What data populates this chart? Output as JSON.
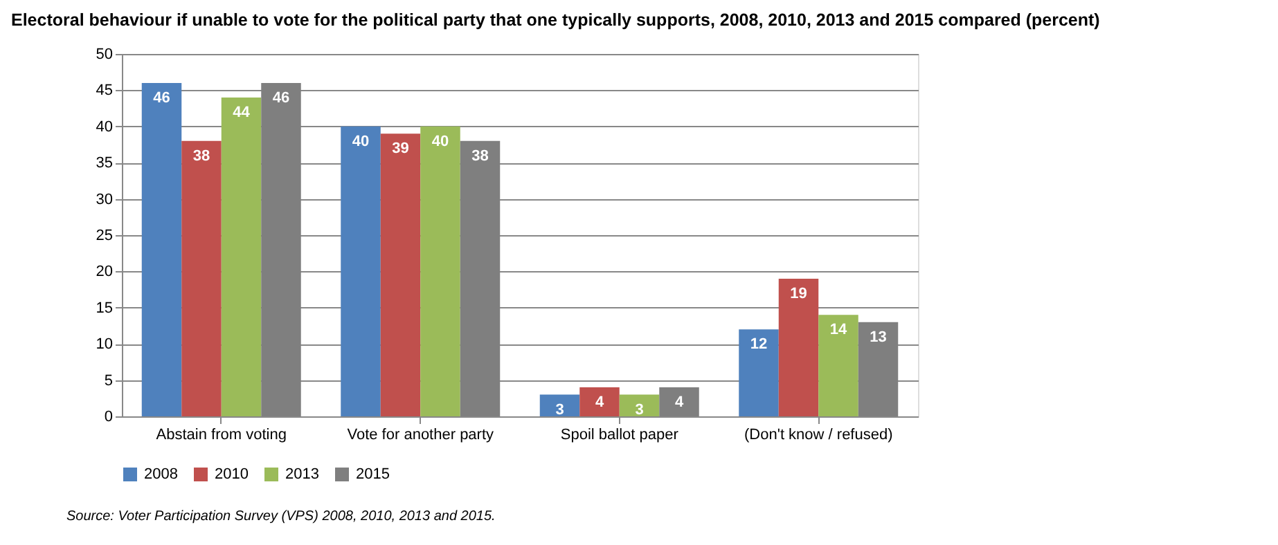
{
  "chart_data": {
    "type": "bar",
    "title": "Electoral behaviour if unable to vote for the political party that one typically supports, 2008, 2010, 2013 and 2015 compared (percent)",
    "categories": [
      "Abstain from voting",
      "Vote for another party",
      "Spoil ballot paper",
      "(Don't know / refused)"
    ],
    "series": [
      {
        "name": "2008",
        "color": "#4f81bd",
        "values": [
          46,
          40,
          3,
          12
        ]
      },
      {
        "name": "2010",
        "color": "#c0504d",
        "values": [
          38,
          39,
          4,
          19
        ]
      },
      {
        "name": "2013",
        "color": "#9bbb59",
        "values": [
          44,
          40,
          3,
          14
        ]
      },
      {
        "name": "2015",
        "color": "#7f7f7f",
        "values": [
          46,
          38,
          4,
          13
        ]
      }
    ],
    "ylim": [
      0,
      50
    ],
    "yticks": [
      0,
      5,
      10,
      15,
      20,
      25,
      30,
      35,
      40,
      45,
      50
    ],
    "grid": "y",
    "legend": "bottom",
    "data_labels": true,
    "annotations": [
      "Source: Voter Participation Survey (VPS) 2008, 2010, 2013 and 2015."
    ]
  }
}
